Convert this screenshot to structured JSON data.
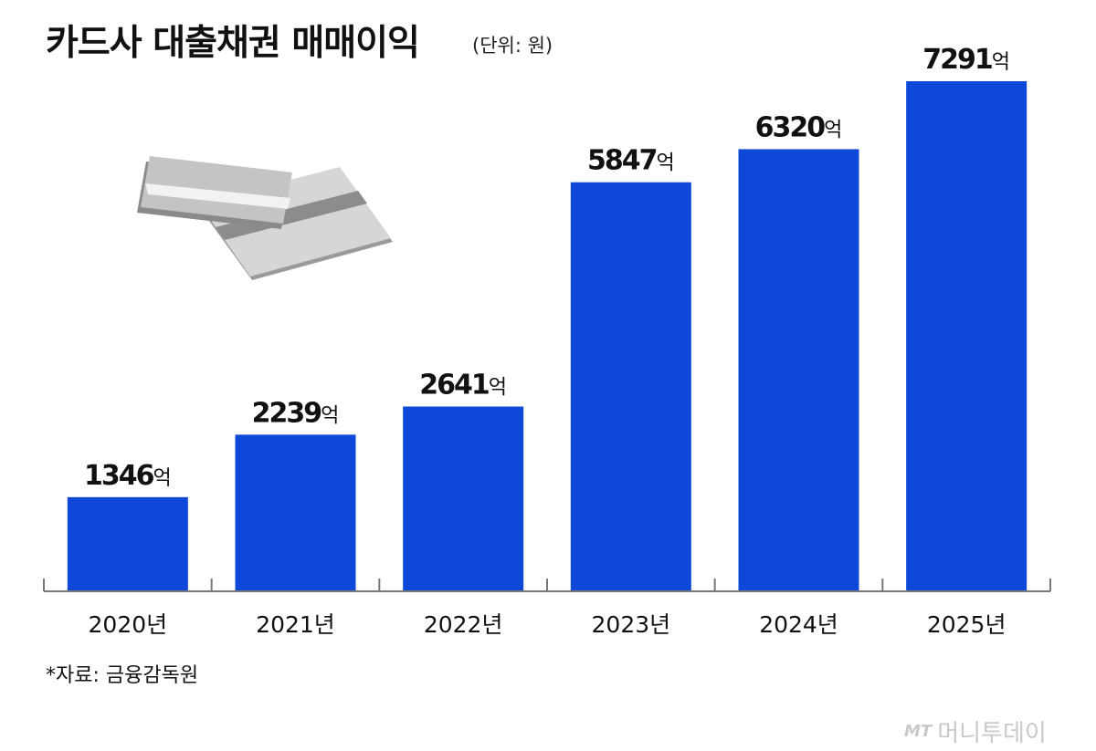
{
  "title": "카드사 대출채권 매매이익",
  "unit": "(단위: 원)",
  "source": "*자료: 금융감독원",
  "watermark": {
    "brand": "MT",
    "name": "머니투데이"
  },
  "colors": {
    "bar": "#0d48d8",
    "text": "#111111",
    "axis": "#777777"
  },
  "chart_data": {
    "type": "bar",
    "categories": [
      "2020년",
      "2021년",
      "2022년",
      "2023년",
      "2024년",
      "2025년"
    ],
    "values": [
      1346,
      2239,
      2641,
      5847,
      6320,
      7291
    ],
    "value_suffix": "억",
    "ylim": [
      0,
      7800
    ],
    "grid": false,
    "legend": "none"
  }
}
